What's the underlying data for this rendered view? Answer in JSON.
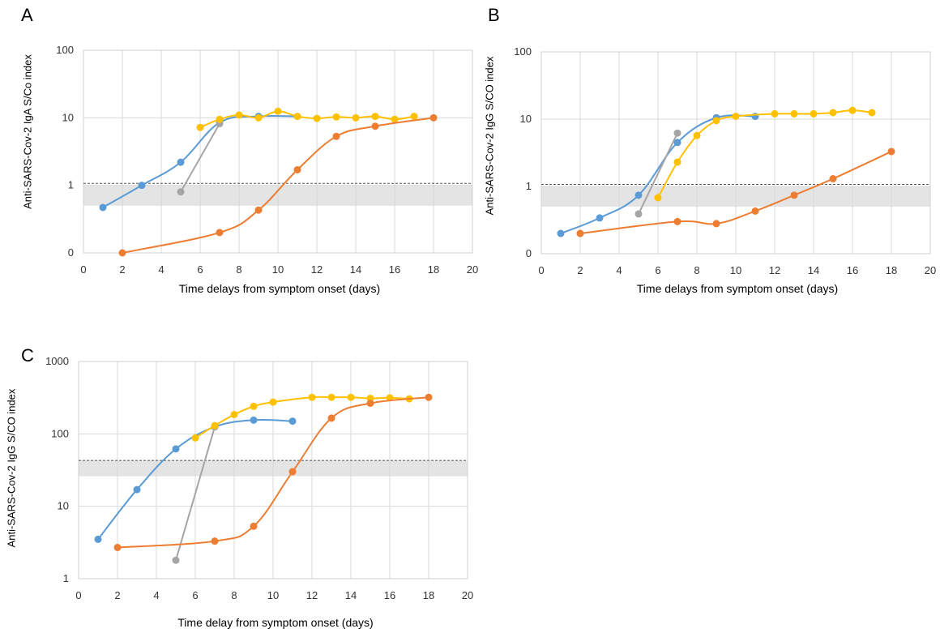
{
  "chart_data": [
    {
      "panel": "A",
      "type": "line",
      "ylabel": "Anti-SARS-Cov-2 IgA S/Co index",
      "xlabel": "Time delays from symptom onset (days)",
      "xlim": [
        0,
        20
      ],
      "xticks": [
        "0",
        "2",
        "4",
        "6",
        "8",
        "10",
        "12",
        "14",
        "16",
        "18",
        "20"
      ],
      "y_scale": "log",
      "yticks": [
        "0",
        "1",
        "10",
        "100"
      ],
      "cutoff_dashed": 1.07,
      "gray_band": [
        0.5,
        1.0
      ],
      "series": [
        {
          "color": "#5b9bd5",
          "x": [
            1,
            3,
            5,
            7,
            9,
            11
          ],
          "y": [
            0.47,
            1.0,
            2.2,
            8.5,
            10.5,
            10.5
          ]
        },
        {
          "color": "#a5a5a5",
          "x": [
            5,
            7
          ],
          "y": [
            0.8,
            8.2
          ]
        },
        {
          "color": "#ffc000",
          "x": [
            6,
            7,
            8,
            9,
            10,
            11,
            12,
            13,
            14,
            15,
            16,
            17
          ],
          "y": [
            7.2,
            9.5,
            11,
            10,
            12.5,
            10.5,
            9.8,
            10.3,
            10,
            10.5,
            9.5,
            10.5
          ]
        },
        {
          "color": "#ed7d31",
          "x": [
            2,
            7,
            9,
            11,
            13,
            15,
            18
          ],
          "y": [
            0.1,
            0.2,
            0.43,
            1.7,
            5.3,
            7.5,
            10
          ]
        }
      ]
    },
    {
      "panel": "B",
      "type": "line",
      "ylabel": "Anti-SARS-Cov-2  IgG S/CO index",
      "xlabel": "Time delays from symptom onset (days)",
      "xlim": [
        0,
        20
      ],
      "xticks": [
        "0",
        "2",
        "4",
        "6",
        "8",
        "10",
        "12",
        "14",
        "16",
        "18",
        "20"
      ],
      "y_scale": "log",
      "yticks": [
        "0",
        "1",
        "10",
        "100"
      ],
      "cutoff_dashed": 1.07,
      "gray_band": [
        0.5,
        1.0
      ],
      "series": [
        {
          "color": "#5b9bd5",
          "x": [
            1,
            3,
            5,
            7,
            9,
            11
          ],
          "y": [
            0.2,
            0.34,
            0.74,
            4.5,
            10.5,
            11
          ]
        },
        {
          "color": "#a5a5a5",
          "x": [
            5,
            7
          ],
          "y": [
            0.39,
            6.2
          ]
        },
        {
          "color": "#ffc000",
          "x": [
            6,
            7,
            8,
            9,
            10,
            12,
            13,
            14,
            15,
            16,
            17
          ],
          "y": [
            0.68,
            2.3,
            5.7,
            9.5,
            11,
            12,
            12,
            12,
            12.5,
            13.5,
            12.5
          ]
        },
        {
          "color": "#ed7d31",
          "x": [
            2,
            7,
            9,
            11,
            13,
            15,
            18
          ],
          "y": [
            0.2,
            0.3,
            0.28,
            0.43,
            0.74,
            1.3,
            3.3
          ]
        }
      ]
    },
    {
      "panel": "C",
      "type": "line",
      "ylabel": "Anti-SARS-Cov-2  IgG S/CO index",
      "xlabel": "Time delay from symptom onset (days)",
      "xlim": [
        0,
        20
      ],
      "xticks": [
        "0",
        "2",
        "4",
        "6",
        "8",
        "10",
        "12",
        "14",
        "16",
        "18",
        "20"
      ],
      "y_scale": "log",
      "yticks": [
        "1",
        "10",
        "100",
        "1000"
      ],
      "cutoff_dashed": 43,
      "gray_band": [
        26,
        43
      ],
      "series": [
        {
          "color": "#5b9bd5",
          "x": [
            1,
            3,
            5,
            7,
            9,
            11
          ],
          "y": [
            3.5,
            17,
            62,
            125,
            155,
            150
          ]
        },
        {
          "color": "#a5a5a5",
          "x": [
            5,
            7
          ],
          "y": [
            1.8,
            125
          ]
        },
        {
          "color": "#ffc000",
          "x": [
            6,
            7,
            8,
            9,
            10,
            12,
            13,
            14,
            15,
            16,
            17
          ],
          "y": [
            88,
            130,
            185,
            240,
            275,
            320,
            320,
            320,
            310,
            315,
            305
          ]
        },
        {
          "color": "#ed7d31",
          "x": [
            2,
            7,
            9,
            11,
            13,
            15,
            18
          ],
          "y": [
            2.7,
            3.3,
            5.3,
            30,
            165,
            265,
            320
          ]
        }
      ]
    }
  ]
}
